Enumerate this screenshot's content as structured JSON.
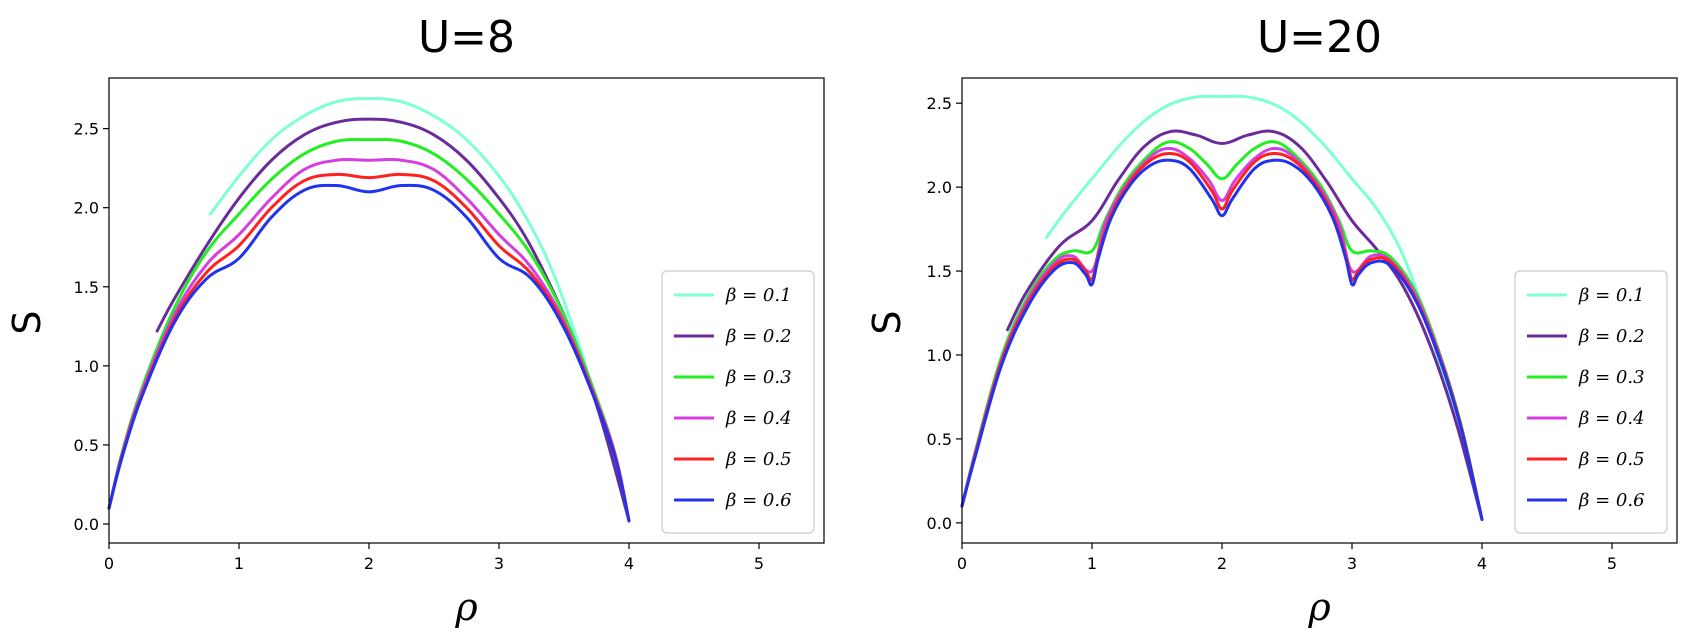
{
  "chart_data": [
    {
      "type": "line",
      "title": "U=8",
      "xlabel": "ρ",
      "ylabel": "S",
      "xlim": [
        0,
        5.5
      ],
      "ylim": [
        -0.12,
        2.82
      ],
      "xticks": [
        0,
        1,
        2,
        3,
        4,
        5
      ],
      "yticks": [
        0.0,
        0.5,
        1.0,
        1.5,
        2.0,
        2.5
      ],
      "xtick_labels": [
        "0",
        "1",
        "2",
        "3",
        "4",
        "5"
      ],
      "ytick_labels": [
        "0.0",
        "0.5",
        "1.0",
        "1.5",
        "2.0",
        "2.5"
      ],
      "grid": false,
      "legend_position": "lower-right",
      "series": [
        {
          "name": "β = 0.1",
          "color": "#7fffd4",
          "x": [
            0.78,
            1.0,
            1.25,
            1.5,
            1.75,
            2.0,
            2.25,
            2.5,
            2.75,
            3.0,
            3.2,
            3.4,
            3.6,
            3.8,
            4.0
          ],
          "y": [
            1.96,
            2.2,
            2.43,
            2.58,
            2.67,
            2.69,
            2.67,
            2.58,
            2.43,
            2.2,
            1.95,
            1.62,
            1.17,
            0.62,
            0.02
          ]
        },
        {
          "name": "β = 0.2",
          "color": "#6a2c9b",
          "x": [
            0.37,
            0.5,
            0.75,
            1.0,
            1.25,
            1.5,
            1.75,
            2.0,
            2.25,
            2.5,
            2.75,
            3.0,
            3.2,
            3.4,
            3.6,
            3.8,
            4.0
          ],
          "y": [
            1.22,
            1.42,
            1.76,
            2.06,
            2.3,
            2.46,
            2.54,
            2.56,
            2.54,
            2.46,
            2.3,
            2.06,
            1.82,
            1.5,
            1.12,
            0.62,
            0.02
          ]
        },
        {
          "name": "β = 0.3",
          "color": "#22ee22",
          "x": [
            0.0,
            0.1,
            0.25,
            0.5,
            0.75,
            1.0,
            1.25,
            1.5,
            1.75,
            2.0,
            2.25,
            2.5,
            2.75,
            3.0,
            3.25,
            3.5,
            3.75,
            3.9,
            4.0
          ],
          "y": [
            0.1,
            0.45,
            0.85,
            1.36,
            1.72,
            1.96,
            2.18,
            2.34,
            2.42,
            2.43,
            2.42,
            2.34,
            2.18,
            1.96,
            1.7,
            1.32,
            0.8,
            0.42,
            0.02
          ]
        },
        {
          "name": "β = 0.4",
          "color": "#d43fe0",
          "x": [
            0.0,
            0.1,
            0.25,
            0.5,
            0.75,
            1.0,
            1.25,
            1.5,
            1.75,
            2.0,
            2.25,
            2.5,
            2.75,
            3.0,
            3.25,
            3.5,
            3.75,
            3.9,
            4.0
          ],
          "y": [
            0.1,
            0.44,
            0.83,
            1.32,
            1.64,
            1.83,
            2.06,
            2.24,
            2.3,
            2.3,
            2.3,
            2.24,
            2.06,
            1.83,
            1.62,
            1.28,
            0.78,
            0.42,
            0.02
          ]
        },
        {
          "name": "β = 0.5",
          "color": "#ff2020",
          "x": [
            0.0,
            0.1,
            0.25,
            0.5,
            0.75,
            1.0,
            1.25,
            1.5,
            1.75,
            2.0,
            2.25,
            2.5,
            2.75,
            3.0,
            3.25,
            3.5,
            3.75,
            3.9,
            4.0
          ],
          "y": [
            0.1,
            0.43,
            0.81,
            1.29,
            1.59,
            1.76,
            2.0,
            2.17,
            2.21,
            2.19,
            2.21,
            2.17,
            2.0,
            1.76,
            1.58,
            1.26,
            0.77,
            0.41,
            0.02
          ]
        },
        {
          "name": "β = 0.6",
          "color": "#2233ee",
          "x": [
            0.0,
            0.1,
            0.25,
            0.5,
            0.75,
            1.0,
            1.25,
            1.5,
            1.75,
            2.0,
            2.25,
            2.5,
            2.75,
            3.0,
            3.25,
            3.5,
            3.75,
            3.9,
            4.0
          ],
          "y": [
            0.1,
            0.42,
            0.8,
            1.27,
            1.55,
            1.68,
            1.94,
            2.11,
            2.14,
            2.1,
            2.14,
            2.11,
            1.94,
            1.68,
            1.55,
            1.24,
            0.76,
            0.4,
            0.02
          ]
        }
      ]
    },
    {
      "type": "line",
      "title": "U=20",
      "xlabel": "ρ",
      "ylabel": "S",
      "xlim": [
        0,
        5.5
      ],
      "ylim": [
        -0.12,
        2.65
      ],
      "xticks": [
        0,
        1,
        2,
        3,
        4,
        5
      ],
      "yticks": [
        0.0,
        0.5,
        1.0,
        1.5,
        2.0,
        2.5
      ],
      "xtick_labels": [
        "0",
        "1",
        "2",
        "3",
        "4",
        "5"
      ],
      "ytick_labels": [
        "0.0",
        "0.5",
        "1.0",
        "1.5",
        "2.0",
        "2.5"
      ],
      "grid": false,
      "legend_position": "lower-right",
      "series": [
        {
          "name": "β = 0.1",
          "color": "#7fffd4",
          "x": [
            0.65,
            0.8,
            1.0,
            1.25,
            1.5,
            1.75,
            2.0,
            2.25,
            2.5,
            2.75,
            3.0,
            3.2,
            3.4,
            3.6,
            3.8,
            4.0
          ],
          "y": [
            1.7,
            1.86,
            2.05,
            2.28,
            2.45,
            2.53,
            2.54,
            2.53,
            2.45,
            2.28,
            2.05,
            1.86,
            1.58,
            1.14,
            0.6,
            0.02
          ]
        },
        {
          "name": "β = 0.2",
          "color": "#6a2c9b",
          "x": [
            0.35,
            0.5,
            0.75,
            1.0,
            1.2,
            1.4,
            1.6,
            1.8,
            2.0,
            2.2,
            2.4,
            2.6,
            2.8,
            3.0,
            3.2,
            3.4,
            3.6,
            3.8,
            4.0
          ],
          "y": [
            1.15,
            1.38,
            1.65,
            1.8,
            2.04,
            2.24,
            2.33,
            2.31,
            2.26,
            2.31,
            2.33,
            2.24,
            2.04,
            1.8,
            1.62,
            1.4,
            1.06,
            0.6,
            0.02
          ]
        },
        {
          "name": "β = 0.3",
          "color": "#22ee22",
          "x": [
            0.0,
            0.1,
            0.3,
            0.5,
            0.7,
            0.85,
            1.0,
            1.1,
            1.25,
            1.45,
            1.6,
            1.75,
            1.88,
            2.0,
            2.12,
            2.25,
            2.4,
            2.55,
            2.75,
            2.9,
            3.0,
            3.15,
            3.3,
            3.5,
            3.7,
            3.85,
            4.0
          ],
          "y": [
            0.1,
            0.42,
            0.98,
            1.34,
            1.56,
            1.62,
            1.62,
            1.8,
            2.02,
            2.2,
            2.27,
            2.23,
            2.14,
            2.05,
            2.14,
            2.23,
            2.27,
            2.2,
            2.02,
            1.8,
            1.62,
            1.62,
            1.58,
            1.36,
            0.95,
            0.55,
            0.02
          ]
        },
        {
          "name": "β = 0.4",
          "color": "#d43fe0",
          "x": [
            0.0,
            0.1,
            0.3,
            0.5,
            0.7,
            0.85,
            1.0,
            1.1,
            1.25,
            1.45,
            1.6,
            1.75,
            1.9,
            2.0,
            2.1,
            2.25,
            2.4,
            2.55,
            2.75,
            2.9,
            3.0,
            3.15,
            3.3,
            3.5,
            3.7,
            3.85,
            4.0
          ],
          "y": [
            0.1,
            0.41,
            0.96,
            1.32,
            1.54,
            1.59,
            1.5,
            1.78,
            2.0,
            2.18,
            2.23,
            2.17,
            2.04,
            1.92,
            2.04,
            2.17,
            2.23,
            2.18,
            2.0,
            1.78,
            1.5,
            1.59,
            1.56,
            1.34,
            0.94,
            0.54,
            0.02
          ]
        },
        {
          "name": "β = 0.5",
          "color": "#ff2020",
          "x": [
            0.0,
            0.1,
            0.3,
            0.5,
            0.7,
            0.85,
            0.95,
            1.0,
            1.05,
            1.15,
            1.3,
            1.45,
            1.6,
            1.75,
            1.92,
            2.0,
            2.08,
            2.25,
            2.4,
            2.55,
            2.7,
            2.85,
            2.95,
            3.0,
            3.05,
            3.15,
            3.3,
            3.5,
            3.7,
            3.85,
            4.0
          ],
          "y": [
            0.1,
            0.4,
            0.95,
            1.3,
            1.52,
            1.57,
            1.5,
            1.45,
            1.6,
            1.84,
            2.04,
            2.16,
            2.2,
            2.15,
            1.98,
            1.87,
            1.98,
            2.15,
            2.2,
            2.16,
            2.04,
            1.84,
            1.6,
            1.45,
            1.5,
            1.57,
            1.55,
            1.32,
            0.93,
            0.54,
            0.02
          ]
        },
        {
          "name": "β = 0.6",
          "color": "#2233ee",
          "x": [
            0.0,
            0.1,
            0.3,
            0.5,
            0.7,
            0.85,
            0.95,
            1.0,
            1.05,
            1.15,
            1.3,
            1.45,
            1.6,
            1.75,
            1.92,
            2.0,
            2.08,
            2.25,
            2.4,
            2.55,
            2.7,
            2.85,
            2.95,
            3.0,
            3.05,
            3.15,
            3.3,
            3.5,
            3.7,
            3.85,
            4.0
          ],
          "y": [
            0.1,
            0.39,
            0.93,
            1.28,
            1.5,
            1.55,
            1.48,
            1.42,
            1.58,
            1.82,
            2.02,
            2.13,
            2.16,
            2.11,
            1.93,
            1.83,
            1.93,
            2.11,
            2.16,
            2.13,
            2.02,
            1.82,
            1.58,
            1.42,
            1.48,
            1.55,
            1.53,
            1.31,
            0.92,
            0.53,
            0.02
          ]
        }
      ]
    }
  ]
}
